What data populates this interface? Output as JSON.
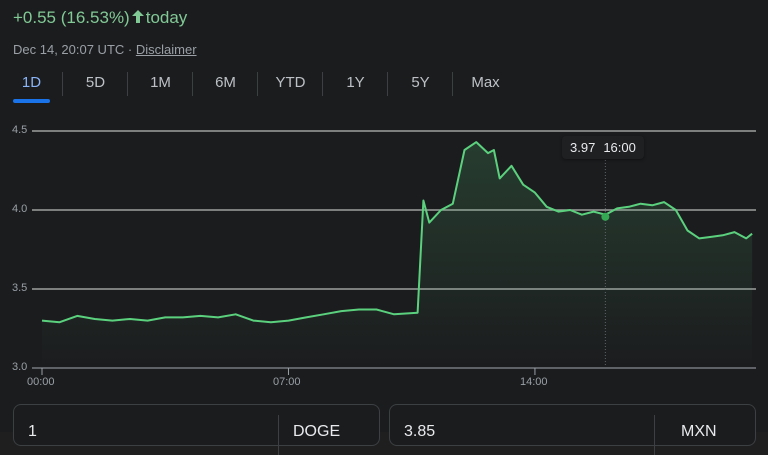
{
  "header": {
    "change_text": "+0.55 (16.53%)",
    "arrow_icon": "arrow-up-icon",
    "period_text": "today",
    "timestamp": "Dec 14, 20:07 UTC",
    "separator": "·",
    "disclaimer_label": "Disclaimer"
  },
  "tabs": [
    {
      "label": "1D",
      "active": true
    },
    {
      "label": "5D"
    },
    {
      "label": "1M"
    },
    {
      "label": "6M"
    },
    {
      "label": "YTD"
    },
    {
      "label": "1Y"
    },
    {
      "label": "5Y"
    },
    {
      "label": "Max"
    }
  ],
  "tooltip": {
    "value": "3.97",
    "time": "16:00"
  },
  "converter": {
    "from_value": "1",
    "from_currency": "DOGE",
    "to_value": "3.85",
    "to_currency": "MXN"
  },
  "colors": {
    "line": "#5bd17e",
    "up_text": "#81c995",
    "active_tab": "#8ab4f8",
    "tab_indicator": "#1a73e8",
    "gridline": "#9e9e9e",
    "background": "#1b1c1e"
  },
  "chart_data": {
    "type": "line",
    "title": "",
    "xlabel": "",
    "ylabel": "",
    "y_ticks": [
      "3.0",
      "3.5",
      "4.0",
      "4.5"
    ],
    "x_ticks": [
      "00:00",
      "07:00",
      "14:00"
    ],
    "ylim": [
      3.0,
      4.5
    ],
    "grid": true,
    "series": [
      {
        "name": "DOGE/MXN",
        "x": [
          "00:00",
          "00:30",
          "01:00",
          "01:30",
          "02:00",
          "02:30",
          "03:00",
          "03:30",
          "04:00",
          "04:30",
          "05:00",
          "05:30",
          "06:00",
          "06:30",
          "07:00",
          "07:30",
          "08:00",
          "08:30",
          "09:00",
          "09:30",
          "10:00",
          "10:40",
          "10:50",
          "11:00",
          "11:20",
          "11:40",
          "12:00",
          "12:20",
          "12:40",
          "12:50",
          "13:00",
          "13:20",
          "13:40",
          "14:00",
          "14:20",
          "14:40",
          "15:00",
          "15:20",
          "15:40",
          "16:00",
          "16:20",
          "16:40",
          "17:00",
          "17:20",
          "17:40",
          "18:00",
          "18:20",
          "18:40",
          "19:00",
          "19:20",
          "19:40",
          "20:00",
          "20:10"
        ],
        "values": [
          3.3,
          3.29,
          3.33,
          3.31,
          3.3,
          3.31,
          3.3,
          3.32,
          3.32,
          3.33,
          3.32,
          3.34,
          3.3,
          3.29,
          3.3,
          3.32,
          3.34,
          3.36,
          3.37,
          3.37,
          3.34,
          3.35,
          4.06,
          3.92,
          4.0,
          4.04,
          4.38,
          4.43,
          4.36,
          4.38,
          4.2,
          4.28,
          4.16,
          4.11,
          4.02,
          3.99,
          4.0,
          3.97,
          3.99,
          3.97,
          4.01,
          4.02,
          4.04,
          4.03,
          4.05,
          4.0,
          3.87,
          3.82,
          3.83,
          3.84,
          3.86,
          3.82,
          3.85
        ]
      }
    ],
    "annotations": [
      {
        "x": "16:00",
        "y": 3.97,
        "label": "3.97  16:00"
      }
    ]
  }
}
